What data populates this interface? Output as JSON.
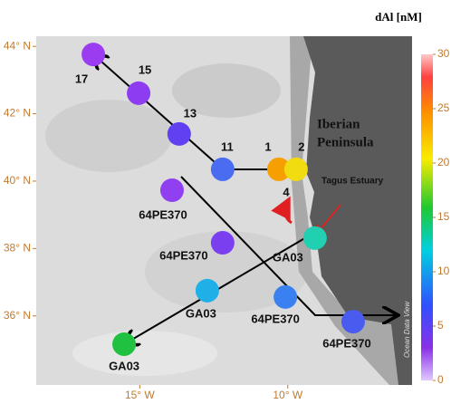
{
  "map": {
    "lon_range": [
      -18.5,
      -5.8
    ],
    "lat_range": [
      33.95,
      44.3
    ],
    "lat_ticks": [
      {
        "value": 44,
        "label": "44° N"
      },
      {
        "value": 42,
        "label": "42° N"
      },
      {
        "value": 40,
        "label": "40° N"
      },
      {
        "value": 38,
        "label": "38° N"
      },
      {
        "value": 36,
        "label": "36° N"
      }
    ],
    "lon_ticks": [
      {
        "value": -15,
        "label": "15° W"
      },
      {
        "value": -10,
        "label": "10° W"
      }
    ],
    "region_label": [
      "Iberian",
      "Peninsula"
    ],
    "estuary_label": "Tagus Estuary",
    "station_4_label": "4",
    "watermark": "Ocean Data View",
    "stations": [
      {
        "label": "17",
        "lon": -16.57,
        "lat": 43.76,
        "value": 2,
        "color": "#9b3cf0"
      },
      {
        "label": "15",
        "lon": -15.04,
        "lat": 42.61,
        "value": 2,
        "color": "#8e3cf0"
      },
      {
        "label": "13",
        "lon": -13.67,
        "lat": 41.4,
        "value": 4,
        "color": "#6040f0"
      },
      {
        "label": "11",
        "lon": -12.2,
        "lat": 40.35,
        "value": 6,
        "color": "#4a6cf0"
      },
      {
        "label": "1",
        "lon": -10.3,
        "lat": 40.35,
        "value": 24,
        "color": "#f5a000"
      },
      {
        "label": "2",
        "lon": -9.72,
        "lat": 40.35,
        "value": 21,
        "color": "#f0dc10"
      },
      {
        "label": "64PE370",
        "lon": -13.91,
        "lat": 39.73,
        "value": 2,
        "color": "#9040f0"
      },
      {
        "label": "64PE370",
        "lon": -12.2,
        "lat": 38.17,
        "value": 3,
        "color": "#7a40f0"
      },
      {
        "label": "GA03",
        "lon": -9.08,
        "lat": 38.31,
        "value": 12,
        "color": "#20d0b0"
      },
      {
        "label": "GA03",
        "lon": -12.72,
        "lat": 36.75,
        "value": 9,
        "color": "#20b0e8"
      },
      {
        "label": "64PE370",
        "lon": -10.08,
        "lat": 36.56,
        "value": 7,
        "color": "#3a80f0"
      },
      {
        "label": "64PE370",
        "lon": -7.79,
        "lat": 35.83,
        "value": 5,
        "color": "#4a5cf0"
      },
      {
        "label": "GA03",
        "lon": -15.53,
        "lat": 35.16,
        "value": 15,
        "color": "#20c040"
      }
    ]
  },
  "colorbar": {
    "title": "dAl [nM]",
    "range": [
      0,
      30
    ],
    "ticks": [
      0,
      5,
      10,
      15,
      20,
      25,
      30
    ]
  }
}
